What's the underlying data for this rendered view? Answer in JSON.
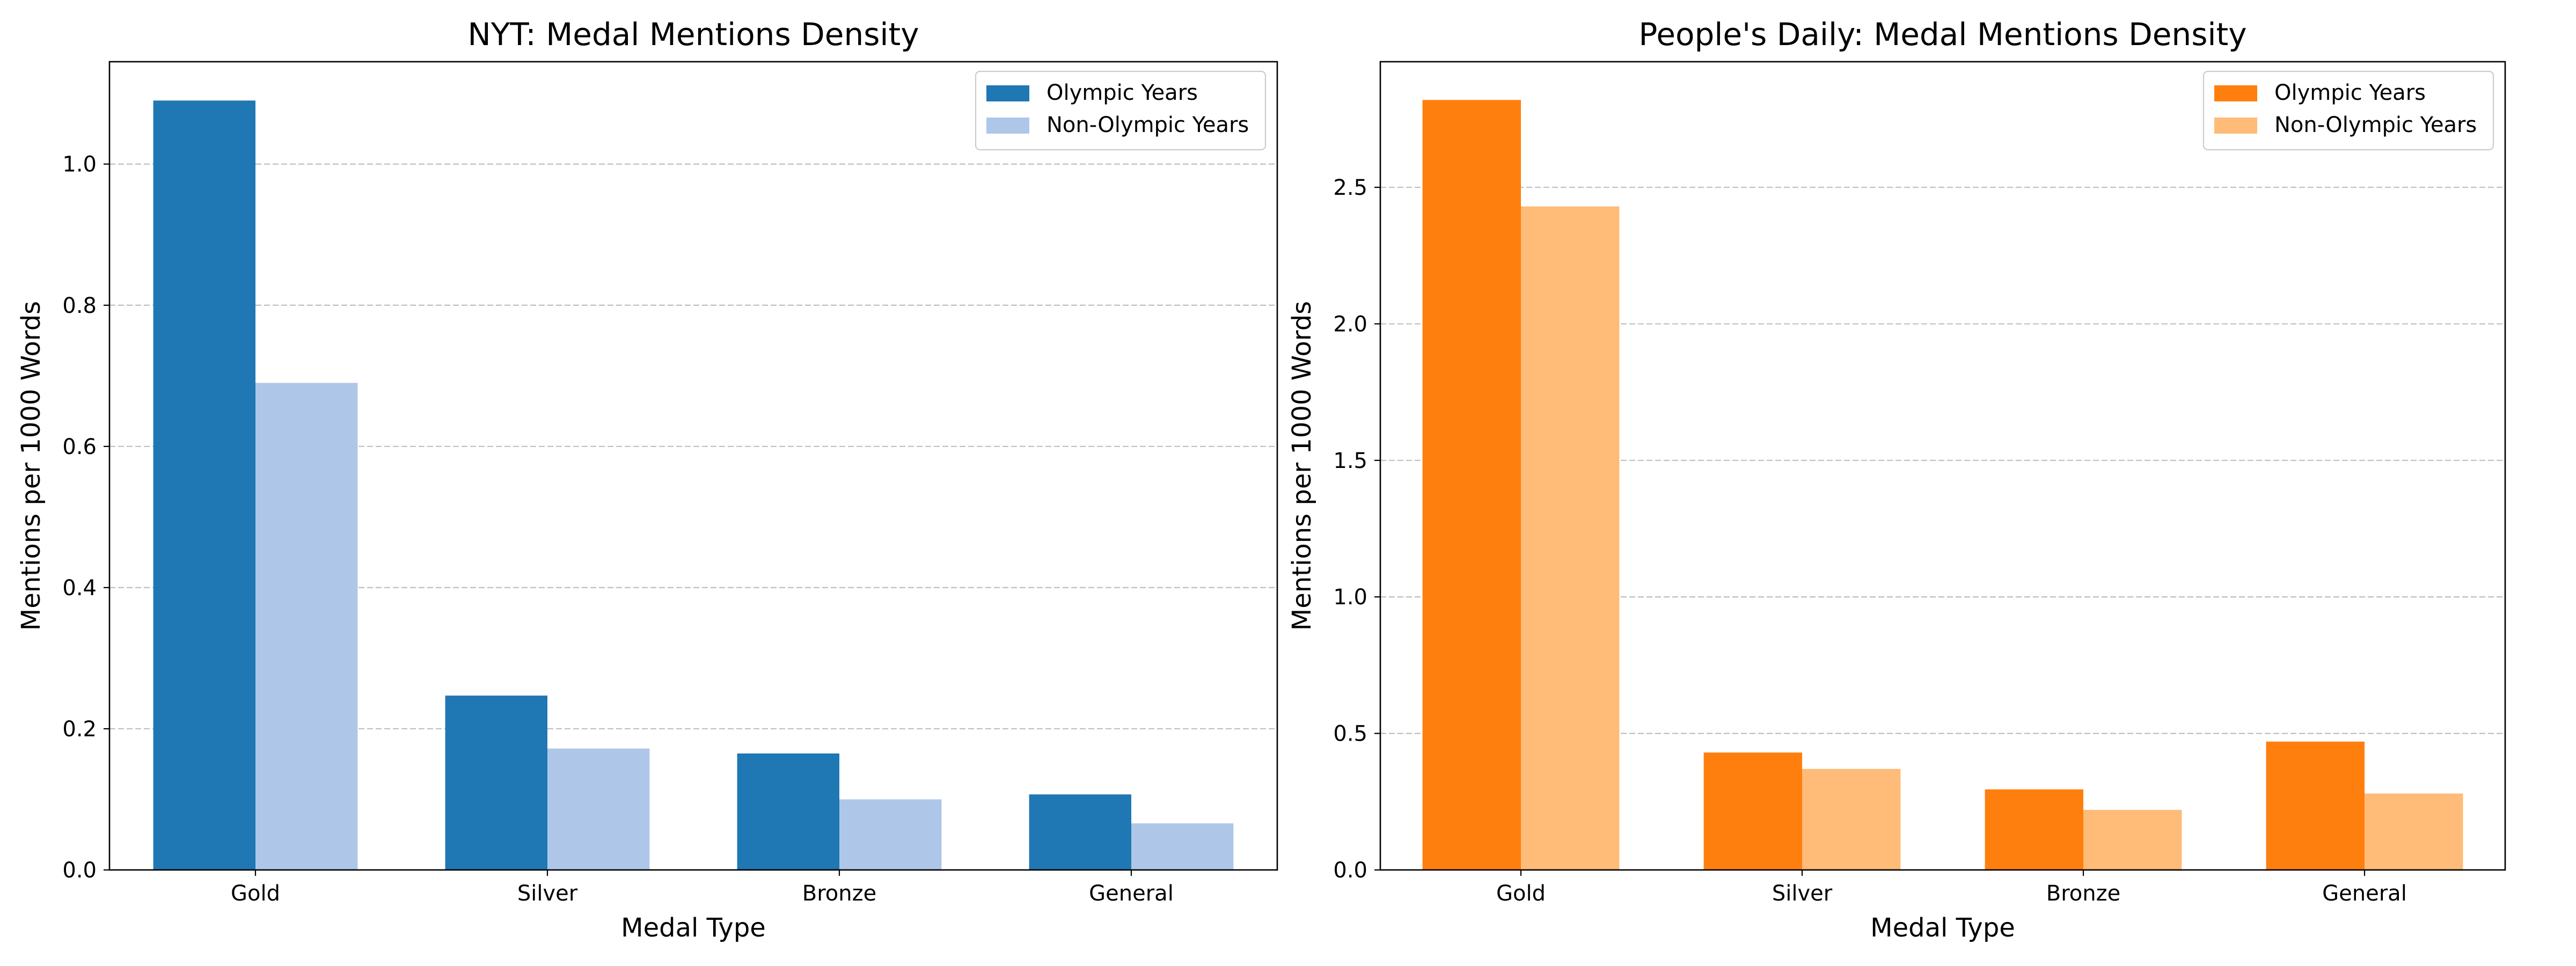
{
  "chart_data": [
    {
      "type": "bar",
      "title": "NYT: Medal Mentions Density",
      "xlabel": "Medal Type",
      "ylabel": "Mentions per 1000 Words",
      "categories": [
        "Gold",
        "Silver",
        "Bronze",
        "General"
      ],
      "series": [
        {
          "name": "Olympic Years",
          "color": "#1f77b4",
          "values": [
            1.09,
            0.247,
            0.165,
            0.107
          ]
        },
        {
          "name": "Non-Olympic Years",
          "color": "#aec7e8",
          "values": [
            0.69,
            0.172,
            0.1,
            0.066
          ]
        }
      ],
      "ylim": [
        0,
        1.145
      ],
      "yticks": [
        0.0,
        0.2,
        0.4,
        0.6,
        0.8,
        1.0
      ],
      "ytick_labels": [
        "0.0",
        "0.2",
        "0.4",
        "0.6",
        "0.8",
        "1.0"
      ],
      "grid": "y-dashed",
      "legend": "top-right"
    },
    {
      "type": "bar",
      "title": "People's Daily: Medal Mentions Density",
      "xlabel": "Medal Type",
      "ylabel": "Mentions per 1000 Words",
      "categories": [
        "Gold",
        "Silver",
        "Bronze",
        "General"
      ],
      "series": [
        {
          "name": "Olympic Years",
          "color": "#ff7f0e",
          "values": [
            2.82,
            0.43,
            0.295,
            0.47
          ]
        },
        {
          "name": "Non-Olympic Years",
          "color": "#ffbb78",
          "values": [
            2.43,
            0.37,
            0.22,
            0.28
          ]
        }
      ],
      "ylim": [
        0,
        2.96
      ],
      "yticks": [
        0.0,
        0.5,
        1.0,
        1.5,
        2.0,
        2.5
      ],
      "ytick_labels": [
        "0.0",
        "0.5",
        "1.0",
        "1.5",
        "2.0",
        "2.5"
      ],
      "grid": "y-dashed",
      "legend": "top-right"
    }
  ]
}
